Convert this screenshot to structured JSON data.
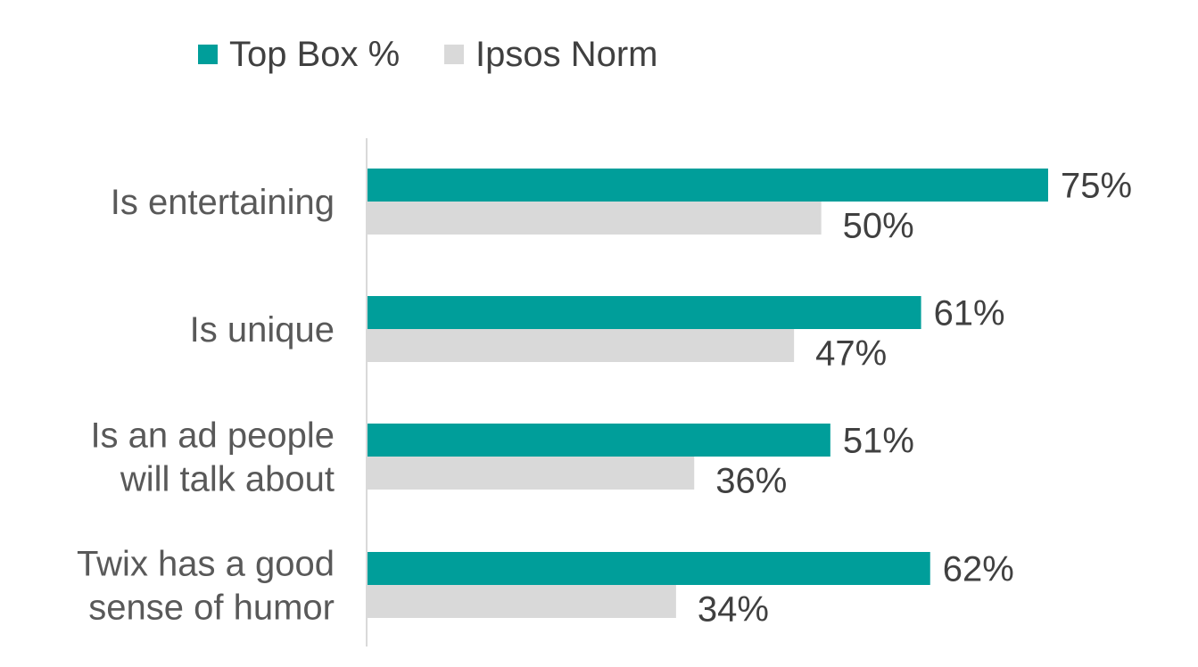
{
  "chart_data": {
    "type": "bar",
    "orientation": "horizontal",
    "categories": [
      [
        "Is entertaining"
      ],
      [
        "Is unique"
      ],
      [
        "Is an ad people",
        "will talk about"
      ],
      [
        "Twix has a good",
        "sense of humor"
      ]
    ],
    "series": [
      {
        "name": "Top Box %",
        "color": "#009e9a",
        "values": [
          75,
          61,
          51,
          62
        ],
        "labels": [
          "75%",
          "61%",
          "51%",
          "62%"
        ]
      },
      {
        "name": "Ipsos Norm",
        "color": "#d9d9d9",
        "values": [
          50,
          47,
          36,
          34
        ],
        "labels": [
          "50%",
          "47%",
          "36%",
          "34%"
        ]
      }
    ],
    "legend_position": "top",
    "grid": false,
    "xlim": [
      0,
      75
    ]
  }
}
